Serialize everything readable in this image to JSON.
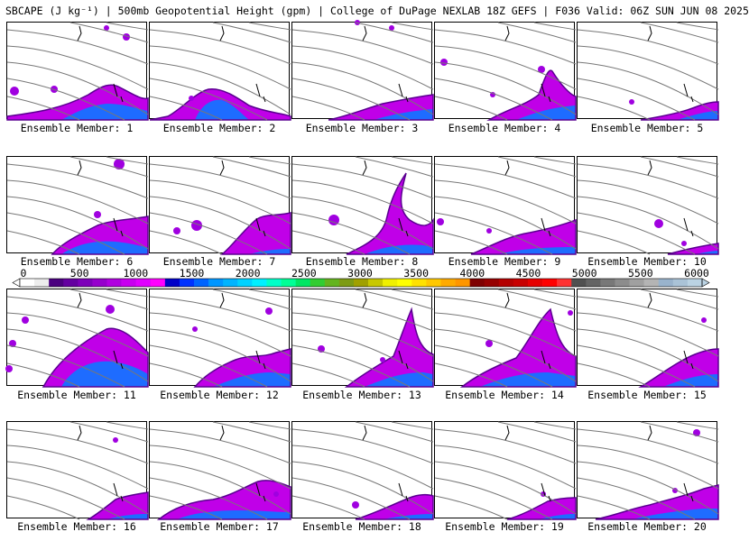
{
  "title": "SBCAPE (J kg⁻¹) | 500mb Geopotential Height (gpm) | College of DuPage NEXLAB 18Z GEFS | F036 Valid: 06Z SUN JUN 08 2025",
  "colorbar": {
    "labels": [
      "0",
      "500",
      "1000",
      "1500",
      "2000",
      "2500",
      "3000",
      "3500",
      "4000",
      "4500",
      "5000",
      "5500",
      "6000"
    ],
    "values": [
      0,
      500,
      1000,
      1500,
      2000,
      2500,
      3000,
      3500,
      4000,
      4500,
      5000,
      5500,
      6000
    ],
    "colors": [
      "#ffffff",
      "#ededed",
      "#4b007f",
      "#6400a0",
      "#7d00b9",
      "#9600cc",
      "#b000e0",
      "#c800f0",
      "#e000ff",
      "#ff00ff",
      "#0000c8",
      "#0032ff",
      "#0064ff",
      "#0096ff",
      "#00b4ff",
      "#00d2ff",
      "#00f0ff",
      "#00ffc8",
      "#00ff96",
      "#00e664",
      "#32cd32",
      "#64b41e",
      "#7d9b14",
      "#a0a000",
      "#c8c800",
      "#f0f000",
      "#ffff00",
      "#ffe100",
      "#ffc800",
      "#ffaa00",
      "#ff9600",
      "#7f0000",
      "#960000",
      "#b40000",
      "#c80000",
      "#e60000",
      "#ff0000",
      "#ff3232",
      "#505050",
      "#646464",
      "#787878",
      "#8c8c8c",
      "#a0a0a0",
      "#b4b4b4",
      "#99b3cc",
      "#aac3d7",
      "#bbd3e3"
    ]
  },
  "members": [
    {
      "label": "Ensemble Member: 1"
    },
    {
      "label": "Ensemble Member: 2"
    },
    {
      "label": "Ensemble Member: 3"
    },
    {
      "label": "Ensemble Member: 4"
    },
    {
      "label": "Ensemble Member: 5"
    },
    {
      "label": "Ensemble Member: 6"
    },
    {
      "label": "Ensemble Member: 7"
    },
    {
      "label": "Ensemble Member: 8"
    },
    {
      "label": "Ensemble Member: 9"
    },
    {
      "label": "Ensemble Member: 10"
    },
    {
      "label": "Ensemble Member: 11"
    },
    {
      "label": "Ensemble Member: 12"
    },
    {
      "label": "Ensemble Member: 13"
    },
    {
      "label": "Ensemble Member: 14"
    },
    {
      "label": "Ensemble Member: 15"
    },
    {
      "label": "Ensemble Member: 16"
    },
    {
      "label": "Ensemble Member: 17"
    },
    {
      "label": "Ensemble Member: 18"
    },
    {
      "label": "Ensemble Member: 19"
    },
    {
      "label": "Ensemble Member: 20"
    }
  ]
}
